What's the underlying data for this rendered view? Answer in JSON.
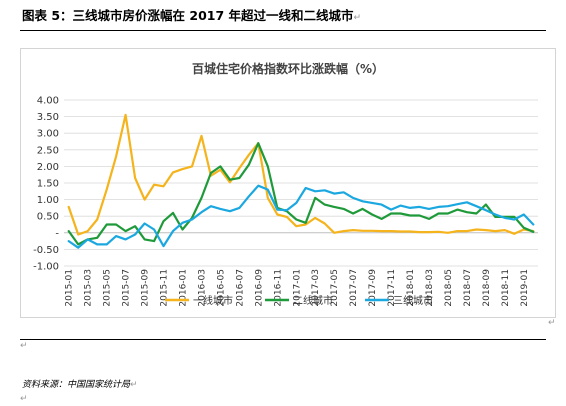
{
  "caption": {
    "text": "图表 5：三线城市房价涨幅在 2017 年超过一线和二线城市",
    "mark": "↵"
  },
  "source": {
    "text": "资料来源：中国国家统计局",
    "mark": "↵"
  },
  "return_mark": "↵",
  "chart_data": {
    "type": "line",
    "title": "百城住宅价格指数环比涨跌幅（%）",
    "xlabel": "",
    "ylabel": "",
    "ylim": [
      -1.0,
      4.0
    ],
    "yticks": [
      4.0,
      3.5,
      3.0,
      2.5,
      2.0,
      1.5,
      1.0,
      0.5,
      0,
      -0.5,
      -1.0
    ],
    "ytick_labels": [
      "4.00",
      "3.50",
      "3.00",
      "2.50",
      "2.00",
      "1.50",
      "1.00",
      "0.50",
      "-",
      "-0.50",
      "-1.00"
    ],
    "x": [
      "2015-01",
      "2015-02",
      "2015-03",
      "2015-04",
      "2015-05",
      "2015-06",
      "2015-07",
      "2015-08",
      "2015-09",
      "2015-10",
      "2015-11",
      "2015-12",
      "2016-01",
      "2016-02",
      "2016-03",
      "2016-04",
      "2016-05",
      "2016-06",
      "2016-07",
      "2016-08",
      "2016-09",
      "2016-10",
      "2016-11",
      "2016-12",
      "2017-01",
      "2017-02",
      "2017-03",
      "2017-04",
      "2017-05",
      "2017-06",
      "2017-07",
      "2017-08",
      "2017-09",
      "2017-10",
      "2017-11",
      "2017-12",
      "2018-01",
      "2018-02",
      "2018-03",
      "2018-04",
      "2018-05",
      "2018-06",
      "2018-07",
      "2018-08",
      "2018-09",
      "2018-10",
      "2018-11",
      "2018-12",
      "2019-01",
      "2019-02"
    ],
    "xtick_labels": [
      "2015-01",
      "2015-03",
      "2015-05",
      "2015-07",
      "2015-09",
      "2015-11",
      "2016-01",
      "2016-03",
      "2016-05",
      "2016-07",
      "2016-09",
      "2016-11",
      "2017-01",
      "2017-03",
      "2017-05",
      "2017-07",
      "2017-09",
      "2017-11",
      "2018-01",
      "2018-03",
      "2018-05",
      "2018-07",
      "2018-09",
      "2018-11",
      "2019-01"
    ],
    "grid": {
      "horizontal": true,
      "vertical": false
    },
    "legend_position": "bottom",
    "series": [
      {
        "name": "一线城市",
        "color": "#f5b31c",
        "values": [
          0.78,
          -0.05,
          0.05,
          0.4,
          1.3,
          2.3,
          3.55,
          1.65,
          1.0,
          1.45,
          1.4,
          1.82,
          1.92,
          2.0,
          2.92,
          1.72,
          1.9,
          1.52,
          1.95,
          2.35,
          2.7,
          1.05,
          0.55,
          0.48,
          0.2,
          0.25,
          0.45,
          0.28,
          0.0,
          0.05,
          0.08,
          0.06,
          0.06,
          0.05,
          0.05,
          0.04,
          0.04,
          0.02,
          0.02,
          0.03,
          0.0,
          0.05,
          0.05,
          0.1,
          0.08,
          0.05,
          0.08,
          -0.03,
          0.1,
          0.05
        ]
      },
      {
        "name": "二线城市",
        "color": "#1f9a3a",
        "values": [
          0.05,
          -0.35,
          -0.2,
          -0.15,
          0.25,
          0.25,
          0.05,
          0.2,
          -0.2,
          -0.25,
          0.35,
          0.6,
          0.1,
          0.45,
          1.05,
          1.8,
          2.0,
          1.6,
          1.65,
          2.05,
          2.7,
          2.0,
          0.75,
          0.65,
          0.4,
          0.3,
          1.05,
          0.85,
          0.78,
          0.72,
          0.58,
          0.72,
          0.55,
          0.42,
          0.58,
          0.58,
          0.52,
          0.52,
          0.42,
          0.58,
          0.58,
          0.7,
          0.62,
          0.58,
          0.85,
          0.48,
          0.48,
          0.48,
          0.15,
          0.03
        ]
      },
      {
        "name": "三线城市",
        "color": "#1ba8e0",
        "values": [
          -0.25,
          -0.45,
          -0.2,
          -0.35,
          -0.35,
          -0.1,
          -0.2,
          -0.05,
          0.28,
          0.1,
          -0.4,
          0.05,
          0.3,
          0.4,
          0.62,
          0.8,
          0.72,
          0.65,
          0.75,
          1.1,
          1.42,
          1.3,
          0.7,
          0.68,
          0.9,
          1.35,
          1.25,
          1.28,
          1.18,
          1.22,
          1.05,
          0.95,
          0.9,
          0.85,
          0.7,
          0.82,
          0.75,
          0.78,
          0.72,
          0.78,
          0.8,
          0.86,
          0.92,
          0.8,
          0.68,
          0.55,
          0.45,
          0.4,
          0.55,
          0.25
        ]
      }
    ]
  }
}
